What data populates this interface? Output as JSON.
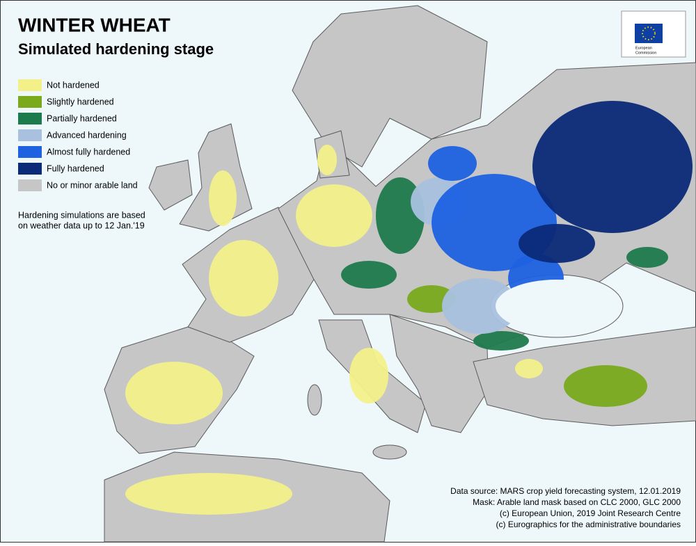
{
  "header": {
    "title": "WINTER WHEAT",
    "subtitle": "Simulated hardening stage"
  },
  "legend": {
    "items": [
      {
        "label": "Not hardened",
        "color": "#f3f08a"
      },
      {
        "label": "Slightly hardened",
        "color": "#7aaa1c"
      },
      {
        "label": "Partially hardened",
        "color": "#1d7a4c"
      },
      {
        "label": "Advanced hardening",
        "color": "#a9c1df"
      },
      {
        "label": "Almost fully hardened",
        "color": "#1e62e2"
      },
      {
        "label": "Fully hardened",
        "color": "#0b2a78"
      },
      {
        "label": "No or minor arable land",
        "color": "#c6c6c6"
      }
    ]
  },
  "note": {
    "lines": [
      "Hardening simulations are based",
      "on weather data up to 12 Jan.'19"
    ]
  },
  "credits": {
    "lines": [
      "Data source: MARS crop yield forecasting system, 12.01.2019",
      "Mask: Arable land mask based on CLC 2000, GLC 2000",
      "(c) European Union, 2019 Joint Research Centre",
      "(c) Eurographics for the administrative boundaries"
    ]
  },
  "logo": {
    "lines": [
      "European",
      "Commission"
    ]
  }
}
